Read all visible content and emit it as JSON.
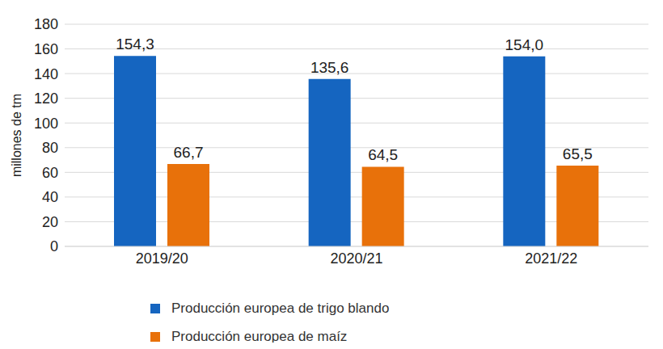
{
  "chart_data": {
    "type": "bar",
    "y_label": "millones de tm",
    "categories": [
      "2019/20",
      "2020/21",
      "2021/22"
    ],
    "series": [
      {
        "name": "Producción europea de trigo blando",
        "color": "#1565c0",
        "values": [
          154.3,
          135.6,
          154.0
        ],
        "value_labels": [
          "154,3",
          "135,6",
          "154,0"
        ]
      },
      {
        "name": "Producción europea de maíz",
        "color": "#e8710a",
        "values": [
          66.7,
          64.5,
          65.5
        ],
        "value_labels": [
          "66,7",
          "64,5",
          "65,5"
        ]
      }
    ],
    "ylim": [
      0,
      180
    ],
    "yticks": [
      0,
      20,
      40,
      60,
      80,
      100,
      120,
      140,
      160,
      180
    ],
    "grid": true,
    "data_labels": true,
    "legend": "bottom"
  }
}
